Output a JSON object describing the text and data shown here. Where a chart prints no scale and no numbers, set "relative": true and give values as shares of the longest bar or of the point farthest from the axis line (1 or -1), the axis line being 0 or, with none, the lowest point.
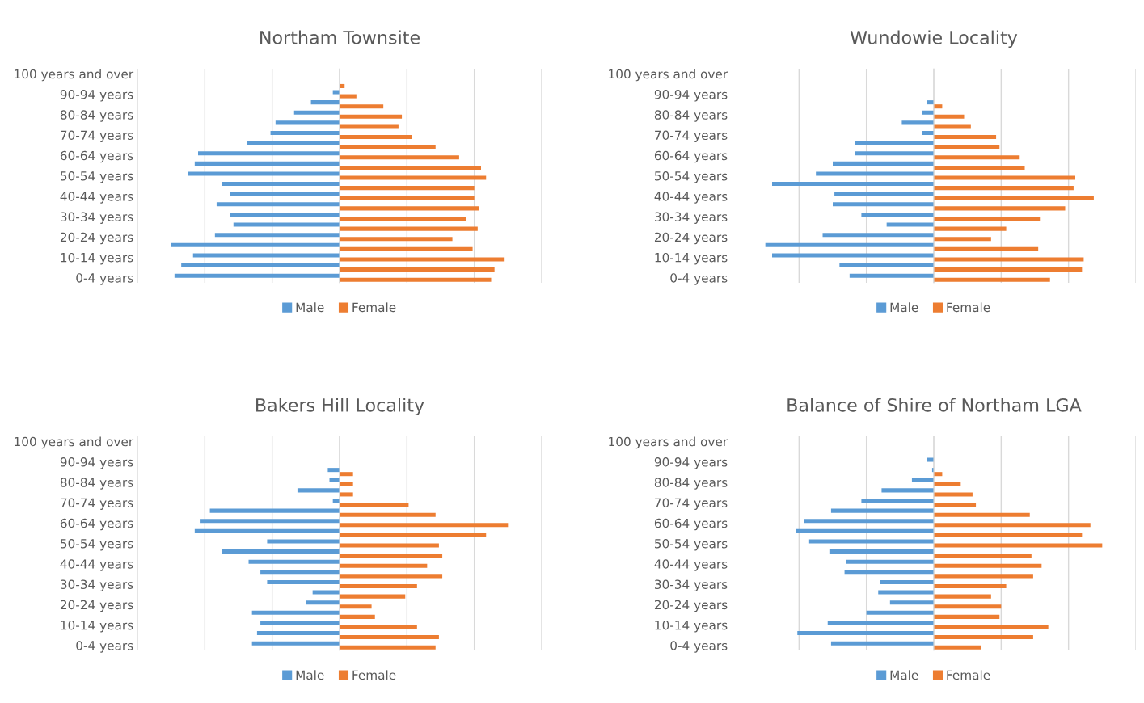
{
  "chart_data": [
    {
      "type": "bar",
      "orientation": "horizontal",
      "relative": true,
      "title": "Northam Townsite",
      "grid": "x",
      "legend": "bottom",
      "categories": [
        "100 years and over",
        null,
        "90-94 years",
        null,
        "80-84 years",
        null,
        "70-74 years",
        null,
        "60-64 years",
        null,
        "50-54 years",
        null,
        "40-44 years",
        null,
        "30-34 years",
        null,
        "20-24 years",
        null,
        "10-14 years",
        null,
        "0-4 years"
      ],
      "series": [
        {
          "name": "Male",
          "color": "#5b9bd5",
          "values": [
            0,
            0,
            -0.04,
            -0.17,
            -0.27,
            -0.38,
            -0.41,
            -0.55,
            -0.84,
            -0.86,
            -0.9,
            -0.7,
            -0.65,
            -0.73,
            -0.65,
            -0.63,
            -0.74,
            -1.0,
            -0.87,
            -0.94,
            -0.98
          ]
        },
        {
          "name": "Female",
          "color": "#ed7d31",
          "values": [
            0,
            0.03,
            0.1,
            0.26,
            0.37,
            0.35,
            0.43,
            0.57,
            0.71,
            0.84,
            0.87,
            0.8,
            0.8,
            0.83,
            0.75,
            0.82,
            0.67,
            0.79,
            0.98,
            0.92,
            0.9
          ]
        }
      ]
    },
    {
      "type": "bar",
      "orientation": "horizontal",
      "relative": true,
      "title": "Wundowie Locality",
      "grid": "x",
      "legend": "bottom",
      "categories": [
        "100 years and over",
        null,
        "90-94 years",
        null,
        "80-84 years",
        null,
        "70-74 years",
        null,
        "60-64 years",
        null,
        "50-54 years",
        null,
        "40-44 years",
        null,
        "30-34 years",
        null,
        "20-24 years",
        null,
        "10-14 years",
        null,
        "0-4 years"
      ],
      "series": [
        {
          "name": "Male",
          "color": "#5b9bd5",
          "values": [
            0,
            0,
            0,
            -0.04,
            -0.07,
            -0.19,
            -0.07,
            -0.47,
            -0.47,
            -0.6,
            -0.7,
            -0.96,
            -0.59,
            -0.6,
            -0.43,
            -0.28,
            -0.66,
            -1.0,
            -0.96,
            -0.56,
            -0.5
          ]
        },
        {
          "name": "Female",
          "color": "#ed7d31",
          "values": [
            0,
            0,
            0,
            0.05,
            0.18,
            0.22,
            0.37,
            0.39,
            0.51,
            0.54,
            0.84,
            0.83,
            0.95,
            0.78,
            0.63,
            0.43,
            0.34,
            0.62,
            0.89,
            0.88,
            0.69
          ]
        }
      ]
    },
    {
      "type": "bar",
      "orientation": "horizontal",
      "relative": true,
      "title": "Bakers Hill Locality",
      "grid": "x",
      "legend": "bottom",
      "categories": [
        "100 years and over",
        null,
        "90-94 years",
        null,
        "80-84 years",
        null,
        "70-74 years",
        null,
        "60-64 years",
        null,
        "50-54 years",
        null,
        "40-44 years",
        null,
        "30-34 years",
        null,
        "20-24 years",
        null,
        "10-14 years",
        null,
        "0-4 years"
      ],
      "series": [
        {
          "name": "Male",
          "color": "#5b9bd5",
          "values": [
            0,
            0,
            0,
            -0.07,
            -0.06,
            -0.25,
            -0.04,
            -0.77,
            -0.83,
            -0.86,
            -0.43,
            -0.7,
            -0.54,
            -0.47,
            -0.43,
            -0.16,
            -0.2,
            -0.52,
            -0.47,
            -0.49,
            -0.52
          ]
        },
        {
          "name": "Female",
          "color": "#ed7d31",
          "values": [
            0,
            0,
            0,
            0.08,
            0.08,
            0.08,
            0.41,
            0.57,
            1.0,
            0.87,
            0.59,
            0.61,
            0.52,
            0.61,
            0.46,
            0.39,
            0.19,
            0.21,
            0.46,
            0.59,
            0.57
          ]
        }
      ]
    },
    {
      "type": "bar",
      "orientation": "horizontal",
      "relative": true,
      "title": "Balance of Shire of Northam LGA",
      "grid": "x",
      "legend": "bottom",
      "categories": [
        "100 years and over",
        null,
        "90-94 years",
        null,
        "80-84 years",
        null,
        "70-74 years",
        null,
        "60-64 years",
        null,
        "50-54 years",
        null,
        "40-44 years",
        null,
        "30-34 years",
        null,
        "20-24 years",
        null,
        "10-14 years",
        null,
        "0-4 years"
      ],
      "series": [
        {
          "name": "Male",
          "color": "#5b9bd5",
          "values": [
            0,
            0,
            -0.04,
            -0.01,
            -0.13,
            -0.31,
            -0.43,
            -0.61,
            -0.77,
            -0.82,
            -0.74,
            -0.62,
            -0.52,
            -0.53,
            -0.32,
            -0.33,
            -0.26,
            -0.4,
            -0.63,
            -0.81,
            -0.61
          ]
        },
        {
          "name": "Female",
          "color": "#ed7d31",
          "values": [
            0,
            0,
            0,
            0.05,
            0.16,
            0.23,
            0.25,
            0.57,
            0.93,
            0.88,
            1.0,
            0.58,
            0.64,
            0.59,
            0.43,
            0.34,
            0.4,
            0.39,
            0.68,
            0.59,
            0.28
          ]
        }
      ]
    }
  ]
}
